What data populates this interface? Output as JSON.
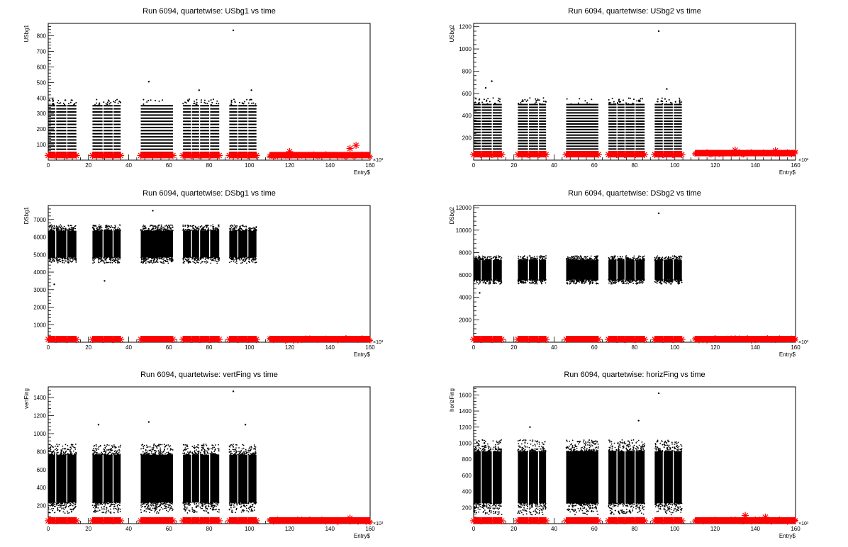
{
  "chart_data": [
    {
      "type": "scatter",
      "title": "Run 6094, quartetwise: USbg1 vs time",
      "xlabel": "Entry$",
      "ylabel": "USbg1",
      "x_exponent_label": "×10³",
      "xlim": [
        0,
        160
      ],
      "ylim": [
        0,
        880
      ],
      "xticks": [
        0,
        20,
        40,
        60,
        80,
        100,
        120,
        140,
        160
      ],
      "yticks": [
        100,
        200,
        300,
        400,
        500,
        600,
        700,
        800
      ],
      "blocks": [
        [
          0,
          3.5
        ],
        [
          4,
          9
        ],
        [
          9.5,
          14
        ],
        [
          22,
          27
        ],
        [
          27.5,
          32
        ],
        [
          32.5,
          36
        ],
        [
          46,
          62
        ],
        [
          67,
          71
        ],
        [
          71.5,
          75
        ],
        [
          75.5,
          80
        ],
        [
          80.5,
          85
        ],
        [
          90,
          94
        ],
        [
          94.5,
          99
        ],
        [
          99.5,
          103.5
        ]
      ],
      "black_series": {
        "min": 30,
        "max": 350,
        "band_step": 20,
        "outliers": [
          [
            50,
            505
          ],
          [
            75,
            450
          ],
          [
            92,
            835
          ],
          [
            101,
            450
          ]
        ]
      },
      "red_series": {
        "blocks_level": 30,
        "tail_range": [
          110,
          160
        ],
        "tail_level": 30,
        "outliers": [
          [
            120,
            55
          ],
          [
            153,
            95
          ],
          [
            150,
            75
          ]
        ]
      },
      "colors": {
        "black": "#000000",
        "red": "#ff0000"
      }
    },
    {
      "type": "scatter",
      "title": "Run 6094, quartetwise: USbg2 vs time",
      "xlabel": "Entry$",
      "ylabel": "USbg2",
      "x_exponent_label": "×10³",
      "xlim": [
        0,
        160
      ],
      "ylim": [
        0,
        1230
      ],
      "xticks": [
        0,
        20,
        40,
        60,
        80,
        100,
        120,
        140,
        160
      ],
      "yticks": [
        200,
        400,
        600,
        800,
        1000,
        1200
      ],
      "blocks": [
        [
          0,
          3.5
        ],
        [
          4,
          9
        ],
        [
          9.5,
          14
        ],
        [
          22,
          27
        ],
        [
          27.5,
          32
        ],
        [
          32.5,
          36
        ],
        [
          46,
          62
        ],
        [
          67,
          71
        ],
        [
          71.5,
          75
        ],
        [
          75.5,
          80
        ],
        [
          80.5,
          85
        ],
        [
          90,
          94
        ],
        [
          94.5,
          99
        ],
        [
          99.5,
          103.5
        ]
      ],
      "black_series": {
        "min": 50,
        "max": 500,
        "band_step": 25,
        "outliers": [
          [
            6,
            650
          ],
          [
            9,
            710
          ],
          [
            92,
            1160
          ],
          [
            96,
            640
          ]
        ]
      },
      "red_series": {
        "blocks_level": 50,
        "tail_range": [
          110,
          160
        ],
        "tail_level": 60,
        "outliers": [
          [
            130,
            90
          ],
          [
            150,
            85
          ]
        ]
      },
      "colors": {
        "black": "#000000",
        "red": "#ff0000"
      }
    },
    {
      "type": "scatter",
      "title": "Run 6094, quartetwise: DSbg1 vs time",
      "xlabel": "Entry$",
      "ylabel": "DSbg1",
      "x_exponent_label": "×10³",
      "xlim": [
        0,
        160
      ],
      "ylim": [
        0,
        7800
      ],
      "xticks": [
        0,
        20,
        40,
        60,
        80,
        100,
        120,
        140,
        160
      ],
      "yticks": [
        1000,
        2000,
        3000,
        4000,
        5000,
        6000,
        7000
      ],
      "blocks": [
        [
          0,
          3.5
        ],
        [
          4,
          9
        ],
        [
          9.5,
          14
        ],
        [
          22,
          27
        ],
        [
          27.5,
          32
        ],
        [
          32.5,
          36
        ],
        [
          46,
          62
        ],
        [
          67,
          71
        ],
        [
          71.5,
          75
        ],
        [
          75.5,
          80
        ],
        [
          80.5,
          85
        ],
        [
          90,
          94
        ],
        [
          94.5,
          99
        ],
        [
          99.5,
          103.5
        ]
      ],
      "black_series": {
        "min": 4600,
        "max": 6600,
        "band_step": 0,
        "outliers": [
          [
            3,
            3300
          ],
          [
            28,
            3500
          ],
          [
            52,
            7500
          ]
        ]
      },
      "red_series": {
        "blocks_level": 0,
        "tail_range": [
          110,
          160
        ],
        "tail_level": 0,
        "outliers": []
      },
      "colors": {
        "black": "#000000",
        "red": "#ff0000"
      }
    },
    {
      "type": "scatter",
      "title": "Run 6094, quartetwise: DSbg2 vs time",
      "xlabel": "Entry$",
      "ylabel": "DSbg2",
      "x_exponent_label": "×10³",
      "xlim": [
        0,
        160
      ],
      "ylim": [
        0,
        12200
      ],
      "xticks": [
        0,
        20,
        40,
        60,
        80,
        100,
        120,
        140,
        160
      ],
      "yticks": [
        2000,
        4000,
        6000,
        8000,
        10000,
        12000
      ],
      "blocks": [
        [
          0,
          3.5
        ],
        [
          4,
          9
        ],
        [
          9.5,
          14
        ],
        [
          22,
          27
        ],
        [
          27.5,
          32
        ],
        [
          32.5,
          36
        ],
        [
          46,
          62
        ],
        [
          67,
          71
        ],
        [
          71.5,
          75
        ],
        [
          75.5,
          80
        ],
        [
          80.5,
          85
        ],
        [
          90,
          94
        ],
        [
          94.5,
          99
        ],
        [
          99.5,
          103.5
        ]
      ],
      "black_series": {
        "min": 5300,
        "max": 7600,
        "band_step": 0,
        "outliers": [
          [
            3,
            4400
          ],
          [
            92,
            11500
          ]
        ]
      },
      "red_series": {
        "blocks_level": 0,
        "tail_range": [
          110,
          160
        ],
        "tail_level": 0,
        "outliers": []
      },
      "colors": {
        "black": "#000000",
        "red": "#ff0000"
      }
    },
    {
      "type": "scatter",
      "title": "Run 6094, quartetwise: vertFing vs time",
      "xlabel": "Entry$",
      "ylabel": "vertFing",
      "x_exponent_label": "×10³",
      "xlim": [
        0,
        160
      ],
      "ylim": [
        0,
        1520
      ],
      "xticks": [
        0,
        20,
        40,
        60,
        80,
        100,
        120,
        140,
        160
      ],
      "yticks": [
        200,
        400,
        600,
        800,
        1000,
        1200,
        1400
      ],
      "blocks": [
        [
          0,
          3.5
        ],
        [
          4,
          9
        ],
        [
          9.5,
          14
        ],
        [
          22,
          27
        ],
        [
          27.5,
          32
        ],
        [
          32.5,
          36
        ],
        [
          46,
          62
        ],
        [
          67,
          71
        ],
        [
          71.5,
          75
        ],
        [
          75.5,
          80
        ],
        [
          80.5,
          85
        ],
        [
          90,
          94
        ],
        [
          94.5,
          99
        ],
        [
          99.5,
          103.5
        ]
      ],
      "black_series": {
        "min": 150,
        "max": 850,
        "band_step": 0,
        "outliers": [
          [
            25,
            1100
          ],
          [
            50,
            1130
          ],
          [
            92,
            1470
          ],
          [
            98,
            1100
          ]
        ]
      },
      "red_series": {
        "blocks_level": 20,
        "tail_range": [
          110,
          160
        ],
        "tail_level": 20,
        "outliers": [
          [
            150,
            60
          ]
        ]
      },
      "colors": {
        "black": "#000000",
        "red": "#ff0000"
      }
    },
    {
      "type": "scatter",
      "title": "Run 6094, quartetwise: horizFing vs time",
      "xlabel": "Entry$",
      "ylabel": "horizFing",
      "x_exponent_label": "×10³",
      "xlim": [
        0,
        160
      ],
      "ylim": [
        0,
        1700
      ],
      "xticks": [
        0,
        20,
        40,
        60,
        80,
        100,
        120,
        140,
        160
      ],
      "yticks": [
        200,
        400,
        600,
        800,
        1000,
        1200,
        1400,
        1600
      ],
      "blocks": [
        [
          0,
          3.5
        ],
        [
          4,
          9
        ],
        [
          9.5,
          14
        ],
        [
          22,
          27
        ],
        [
          27.5,
          32
        ],
        [
          32.5,
          36
        ],
        [
          46,
          62
        ],
        [
          67,
          71
        ],
        [
          71.5,
          75
        ],
        [
          75.5,
          80
        ],
        [
          80.5,
          85
        ],
        [
          90,
          94
        ],
        [
          94.5,
          99
        ],
        [
          99.5,
          103.5
        ]
      ],
      "black_series": {
        "min": 150,
        "max": 1000,
        "band_step": 0,
        "outliers": [
          [
            28,
            1200
          ],
          [
            82,
            1280
          ],
          [
            92,
            1620
          ]
        ]
      },
      "red_series": {
        "blocks_level": 30,
        "tail_range": [
          110,
          160
        ],
        "tail_level": 35,
        "outliers": [
          [
            135,
            100
          ],
          [
            145,
            80
          ]
        ]
      },
      "colors": {
        "black": "#000000",
        "red": "#ff0000"
      }
    }
  ]
}
